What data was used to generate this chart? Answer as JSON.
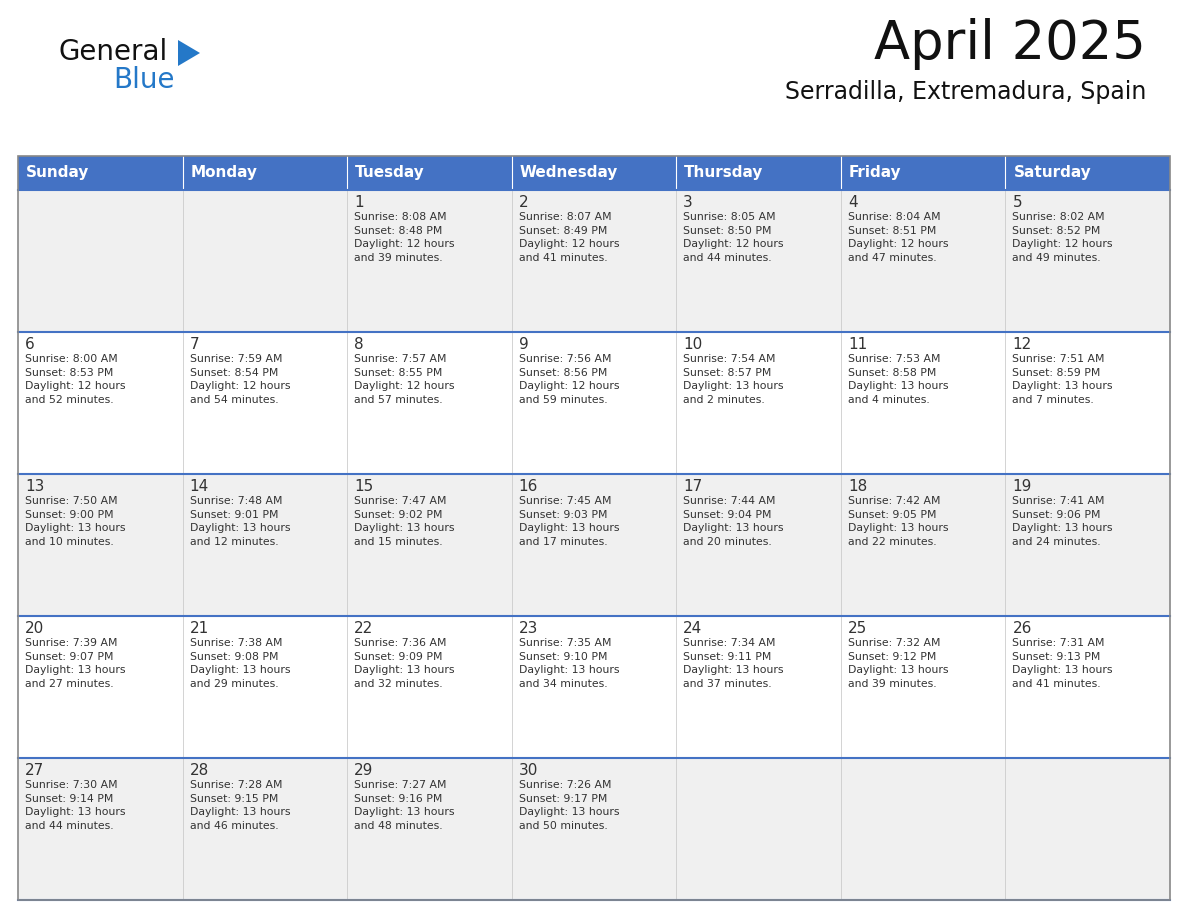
{
  "title": "April 2025",
  "subtitle": "Serradilla, Extremadura, Spain",
  "days_of_week": [
    "Sunday",
    "Monday",
    "Tuesday",
    "Wednesday",
    "Thursday",
    "Friday",
    "Saturday"
  ],
  "header_bg": "#4472C4",
  "header_text_color": "#FFFFFF",
  "cell_bg_odd": "#F0F0F0",
  "cell_bg_even": "#FFFFFF",
  "cell_border_top_color": "#4472C4",
  "cell_text_color": "#333333",
  "title_color": "#111111",
  "subtitle_color": "#111111",
  "logo_general_color": "#111111",
  "logo_blue_color": "#2478C8",
  "weeks": [
    {
      "days": [
        {
          "day": null,
          "info": null
        },
        {
          "day": null,
          "info": null
        },
        {
          "day": 1,
          "info": "Sunrise: 8:08 AM\nSunset: 8:48 PM\nDaylight: 12 hours\nand 39 minutes."
        },
        {
          "day": 2,
          "info": "Sunrise: 8:07 AM\nSunset: 8:49 PM\nDaylight: 12 hours\nand 41 minutes."
        },
        {
          "day": 3,
          "info": "Sunrise: 8:05 AM\nSunset: 8:50 PM\nDaylight: 12 hours\nand 44 minutes."
        },
        {
          "day": 4,
          "info": "Sunrise: 8:04 AM\nSunset: 8:51 PM\nDaylight: 12 hours\nand 47 minutes."
        },
        {
          "day": 5,
          "info": "Sunrise: 8:02 AM\nSunset: 8:52 PM\nDaylight: 12 hours\nand 49 minutes."
        }
      ]
    },
    {
      "days": [
        {
          "day": 6,
          "info": "Sunrise: 8:00 AM\nSunset: 8:53 PM\nDaylight: 12 hours\nand 52 minutes."
        },
        {
          "day": 7,
          "info": "Sunrise: 7:59 AM\nSunset: 8:54 PM\nDaylight: 12 hours\nand 54 minutes."
        },
        {
          "day": 8,
          "info": "Sunrise: 7:57 AM\nSunset: 8:55 PM\nDaylight: 12 hours\nand 57 minutes."
        },
        {
          "day": 9,
          "info": "Sunrise: 7:56 AM\nSunset: 8:56 PM\nDaylight: 12 hours\nand 59 minutes."
        },
        {
          "day": 10,
          "info": "Sunrise: 7:54 AM\nSunset: 8:57 PM\nDaylight: 13 hours\nand 2 minutes."
        },
        {
          "day": 11,
          "info": "Sunrise: 7:53 AM\nSunset: 8:58 PM\nDaylight: 13 hours\nand 4 minutes."
        },
        {
          "day": 12,
          "info": "Sunrise: 7:51 AM\nSunset: 8:59 PM\nDaylight: 13 hours\nand 7 minutes."
        }
      ]
    },
    {
      "days": [
        {
          "day": 13,
          "info": "Sunrise: 7:50 AM\nSunset: 9:00 PM\nDaylight: 13 hours\nand 10 minutes."
        },
        {
          "day": 14,
          "info": "Sunrise: 7:48 AM\nSunset: 9:01 PM\nDaylight: 13 hours\nand 12 minutes."
        },
        {
          "day": 15,
          "info": "Sunrise: 7:47 AM\nSunset: 9:02 PM\nDaylight: 13 hours\nand 15 minutes."
        },
        {
          "day": 16,
          "info": "Sunrise: 7:45 AM\nSunset: 9:03 PM\nDaylight: 13 hours\nand 17 minutes."
        },
        {
          "day": 17,
          "info": "Sunrise: 7:44 AM\nSunset: 9:04 PM\nDaylight: 13 hours\nand 20 minutes."
        },
        {
          "day": 18,
          "info": "Sunrise: 7:42 AM\nSunset: 9:05 PM\nDaylight: 13 hours\nand 22 minutes."
        },
        {
          "day": 19,
          "info": "Sunrise: 7:41 AM\nSunset: 9:06 PM\nDaylight: 13 hours\nand 24 minutes."
        }
      ]
    },
    {
      "days": [
        {
          "day": 20,
          "info": "Sunrise: 7:39 AM\nSunset: 9:07 PM\nDaylight: 13 hours\nand 27 minutes."
        },
        {
          "day": 21,
          "info": "Sunrise: 7:38 AM\nSunset: 9:08 PM\nDaylight: 13 hours\nand 29 minutes."
        },
        {
          "day": 22,
          "info": "Sunrise: 7:36 AM\nSunset: 9:09 PM\nDaylight: 13 hours\nand 32 minutes."
        },
        {
          "day": 23,
          "info": "Sunrise: 7:35 AM\nSunset: 9:10 PM\nDaylight: 13 hours\nand 34 minutes."
        },
        {
          "day": 24,
          "info": "Sunrise: 7:34 AM\nSunset: 9:11 PM\nDaylight: 13 hours\nand 37 minutes."
        },
        {
          "day": 25,
          "info": "Sunrise: 7:32 AM\nSunset: 9:12 PM\nDaylight: 13 hours\nand 39 minutes."
        },
        {
          "day": 26,
          "info": "Sunrise: 7:31 AM\nSunset: 9:13 PM\nDaylight: 13 hours\nand 41 minutes."
        }
      ]
    },
    {
      "days": [
        {
          "day": 27,
          "info": "Sunrise: 7:30 AM\nSunset: 9:14 PM\nDaylight: 13 hours\nand 44 minutes."
        },
        {
          "day": 28,
          "info": "Sunrise: 7:28 AM\nSunset: 9:15 PM\nDaylight: 13 hours\nand 46 minutes."
        },
        {
          "day": 29,
          "info": "Sunrise: 7:27 AM\nSunset: 9:16 PM\nDaylight: 13 hours\nand 48 minutes."
        },
        {
          "day": 30,
          "info": "Sunrise: 7:26 AM\nSunset: 9:17 PM\nDaylight: 13 hours\nand 50 minutes."
        },
        {
          "day": null,
          "info": null
        },
        {
          "day": null,
          "info": null
        },
        {
          "day": null,
          "info": null
        }
      ]
    }
  ]
}
